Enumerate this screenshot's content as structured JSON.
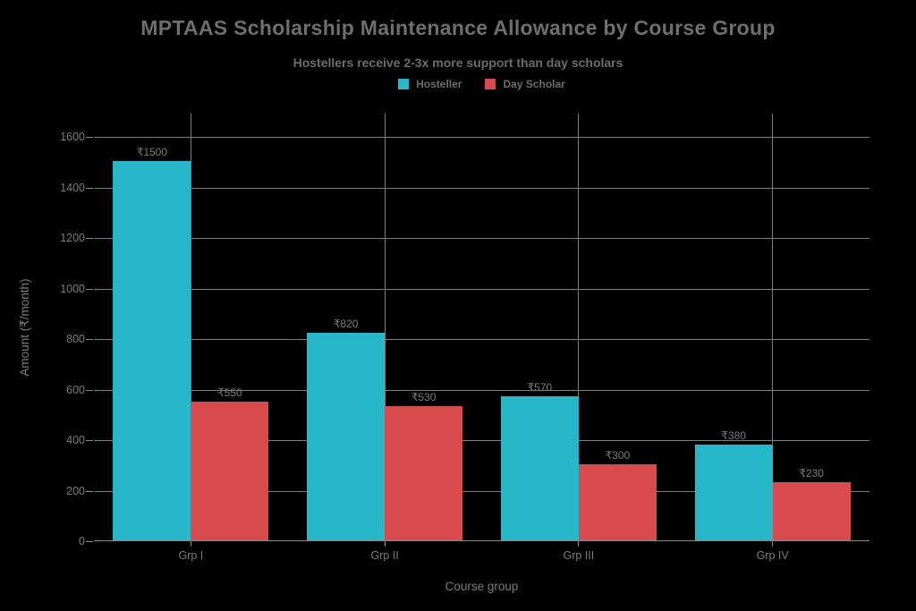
{
  "title": "MPTAAS Scholarship Maintenance Allowance by Course Group",
  "subtitle": "Hostellers receive 2-3x more support than day scholars",
  "legend": {
    "items": [
      {
        "label": "Hosteller",
        "color": "#26b7c8"
      },
      {
        "label": "Day Scholar",
        "color": "#d84a4b"
      }
    ]
  },
  "colors": {
    "background": "#000000",
    "hosteller": "#26b7c8",
    "day_scholar": "#d84a4b",
    "grid": "#7c7c7c",
    "text": "#7b7b7b",
    "title_text": "#6e6e6e"
  },
  "chart_data": {
    "type": "bar",
    "title": "MPTAAS Scholarship Maintenance Allowance by Course Group",
    "subtitle": "Hostellers receive 2-3x more support than day scholars",
    "categories": [
      "Grp I",
      "Grp II",
      "Grp III",
      "Grp IV"
    ],
    "series": [
      {
        "name": "Hosteller",
        "color": "#26b7c8",
        "values": [
          1500,
          820,
          570,
          380
        ],
        "data_labels": [
          "₹1500",
          "₹820",
          "₹570",
          "₹380"
        ]
      },
      {
        "name": "Day Scholar",
        "color": "#d84a4b",
        "values": [
          550,
          530,
          300,
          230
        ],
        "data_labels": [
          "₹550",
          "₹530",
          "₹300",
          "₹230"
        ]
      }
    ],
    "xlabel": "Course group",
    "ylabel": "Amount (₹/month)",
    "yticks": [
      0,
      200,
      400,
      600,
      800,
      1000,
      1200,
      1400,
      1600
    ],
    "ylim": [
      0,
      1700
    ],
    "grid": true,
    "legend_position": "top-center"
  }
}
